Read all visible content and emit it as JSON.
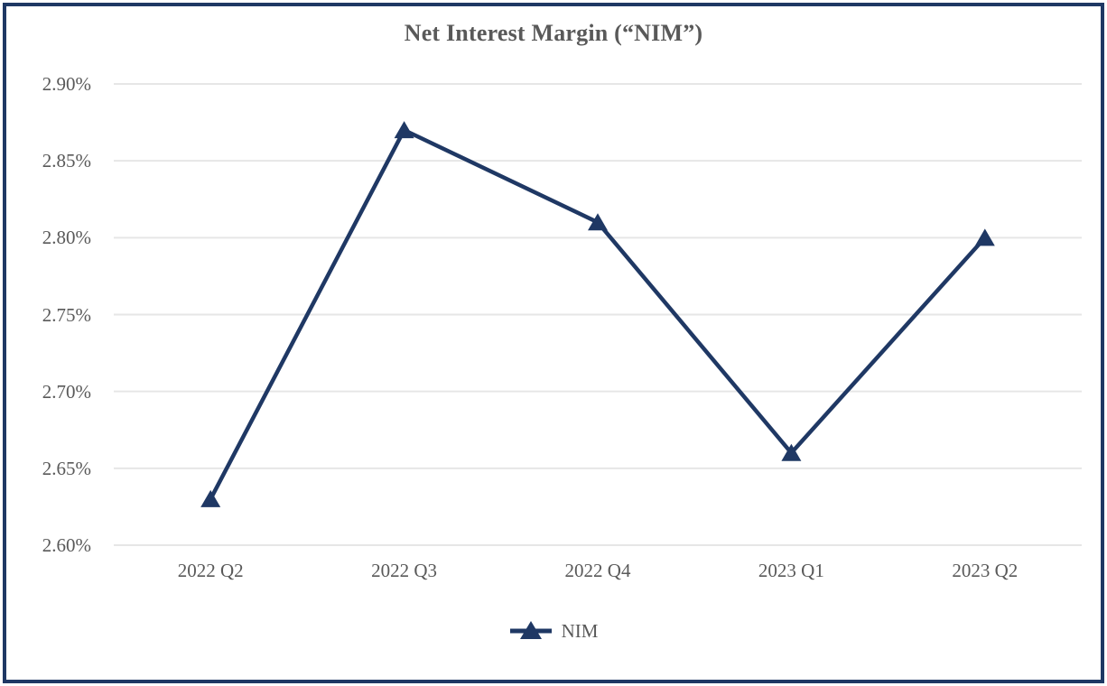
{
  "page": {
    "background": "#ffffff",
    "border_color": "#1F3864"
  },
  "chart_data": {
    "type": "line",
    "title": "Net Interest Margin (“NIM”)",
    "categories": [
      "2022 Q2",
      "2022 Q3",
      "2022 Q4",
      "2023 Q1",
      "2023 Q2"
    ],
    "series": [
      {
        "name": "NIM",
        "values": [
          2.63,
          2.87,
          2.81,
          2.66,
          2.8
        ],
        "color": "#1F3864",
        "marker": "triangle"
      }
    ],
    "unit": "%",
    "ylim": [
      2.6,
      2.9
    ],
    "ytick_step": 0.05,
    "ytick_labels": [
      "2.60%",
      "2.65%",
      "2.70%",
      "2.75%",
      "2.80%",
      "2.85%",
      "2.90%"
    ],
    "xlabel": "",
    "ylabel": "",
    "grid": true,
    "legend": {
      "position": "bottom",
      "entries": [
        "NIM"
      ]
    },
    "colors": {
      "grid": "#E6E6E6",
      "text": "#595959",
      "line": "#1F3864"
    }
  }
}
